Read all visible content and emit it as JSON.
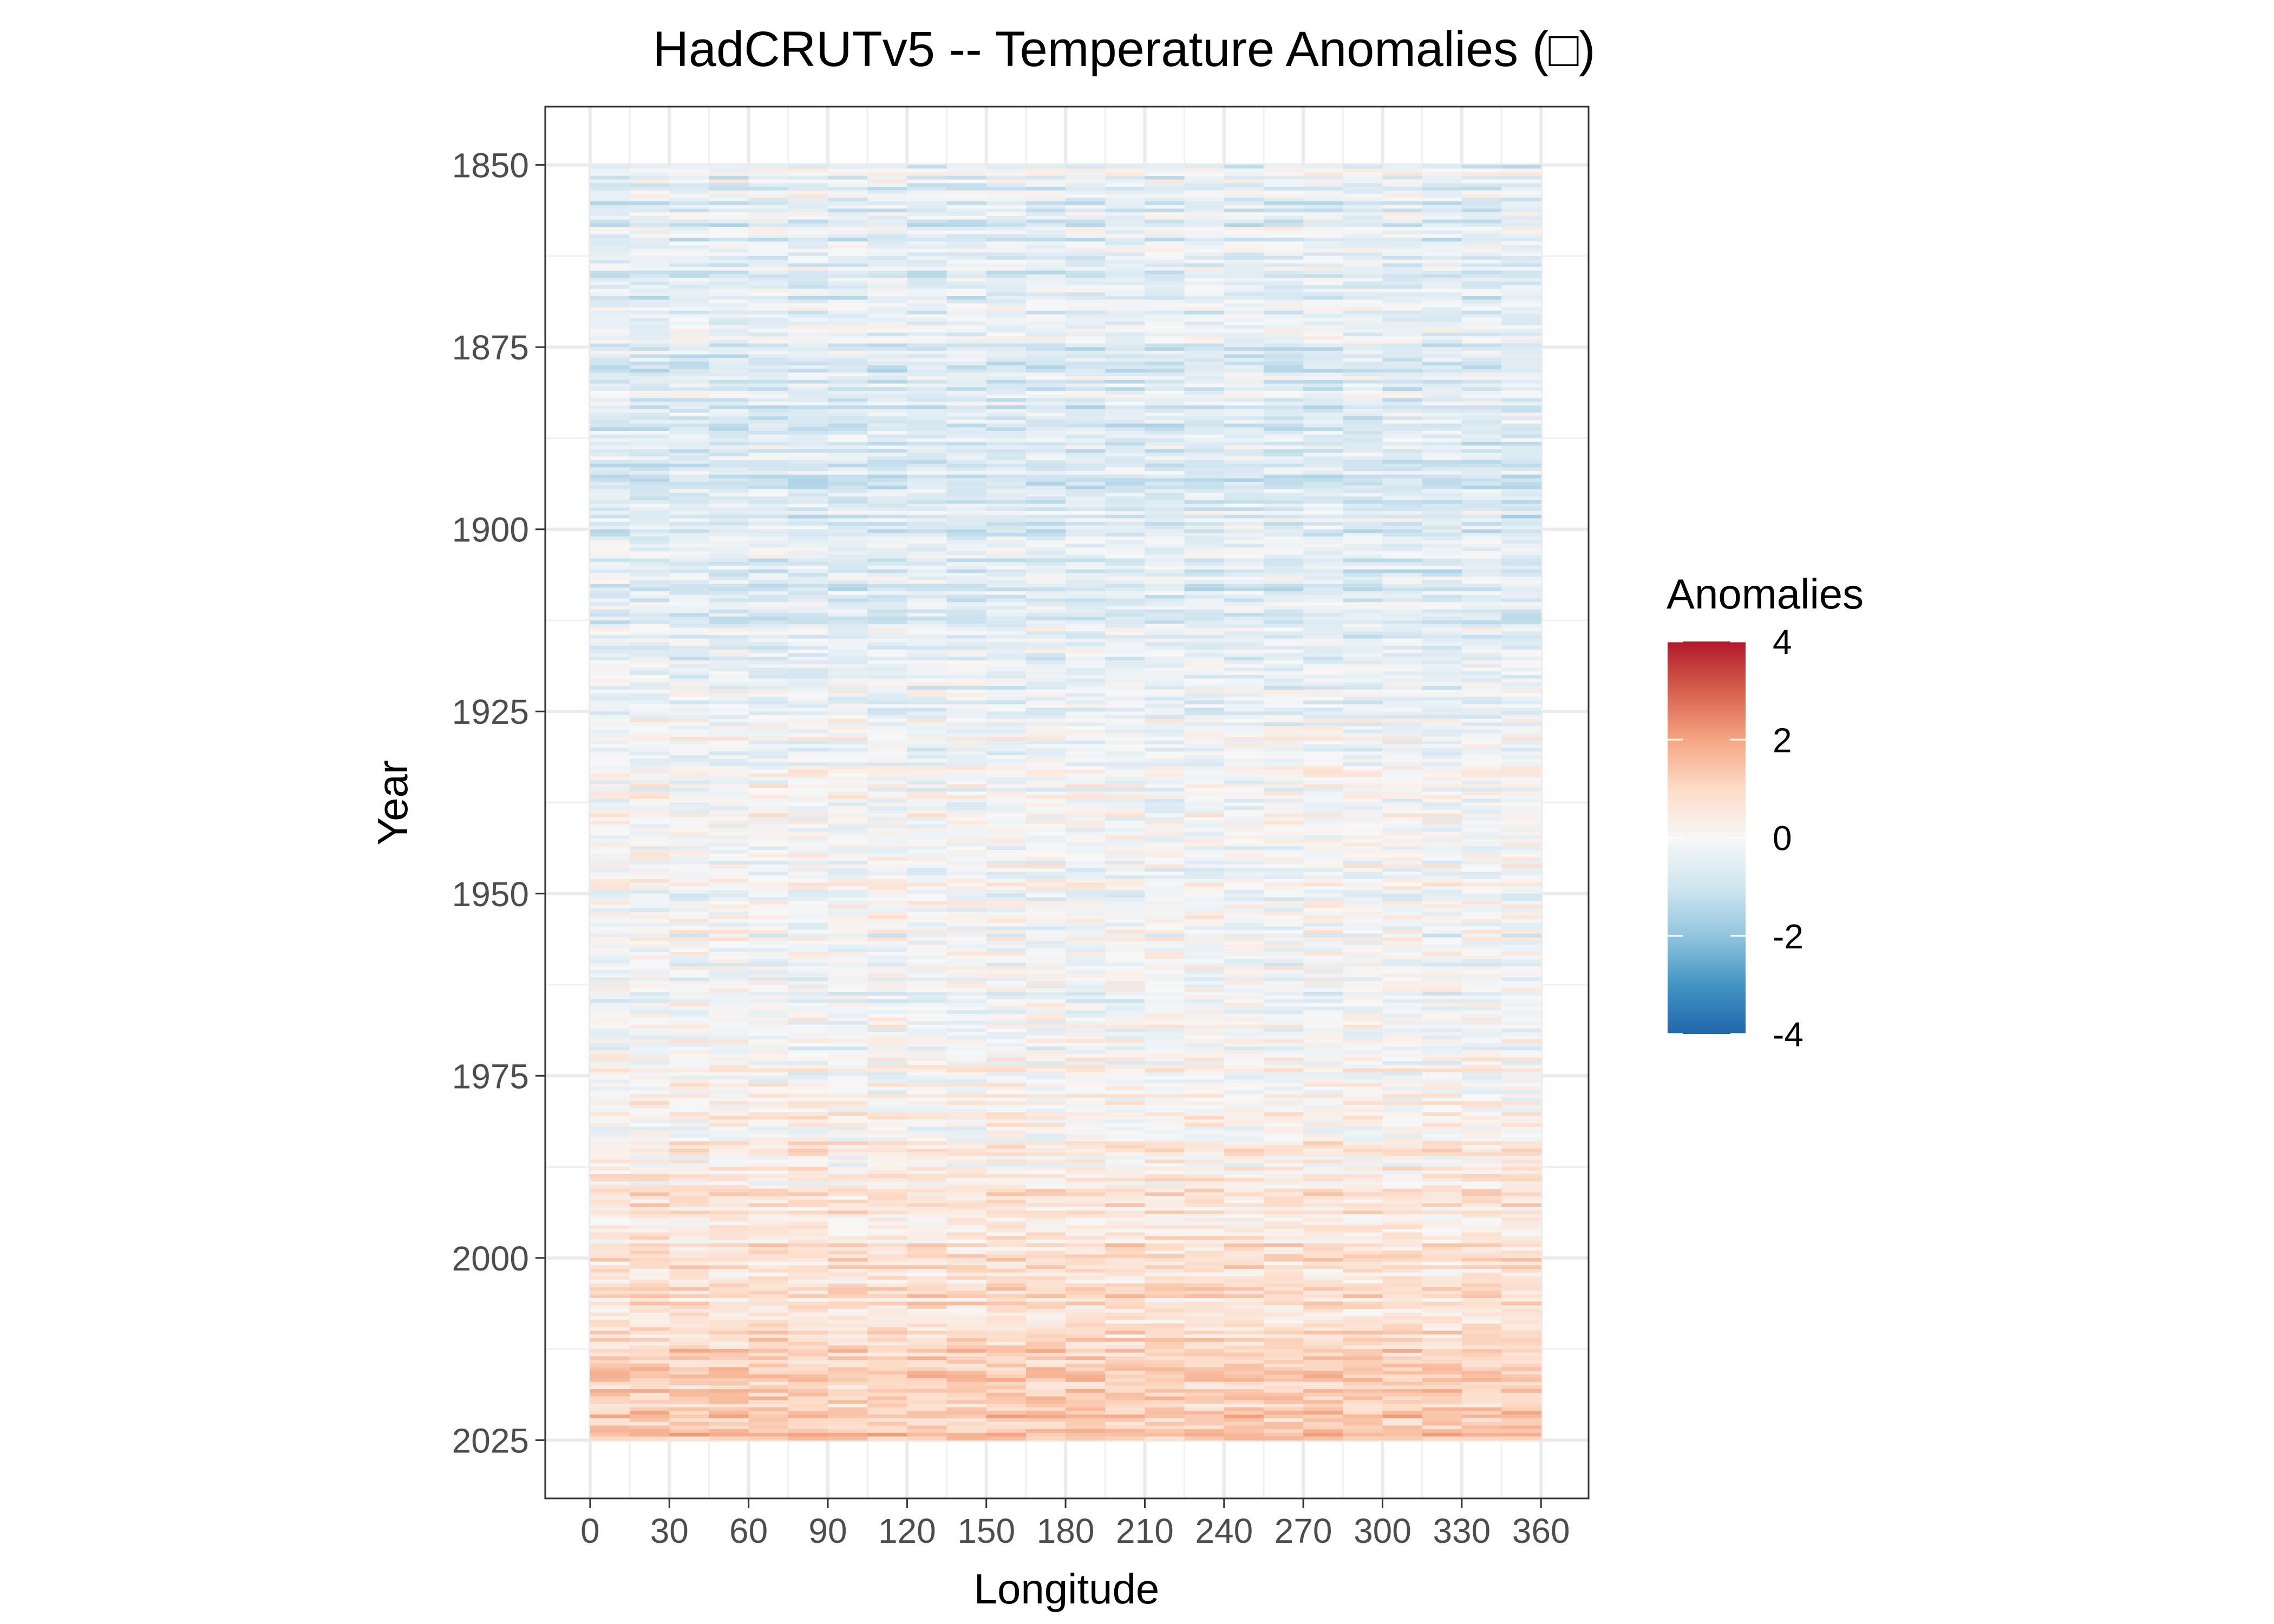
{
  "chart_data": {
    "type": "heatmap",
    "title": "HadCRUTv5 -- Temperature Anomalies (□)",
    "xlabel": "Longitude",
    "ylabel": "Year",
    "x_ticks": [
      0,
      30,
      60,
      90,
      120,
      150,
      180,
      210,
      240,
      270,
      300,
      330,
      360
    ],
    "y_ticks": [
      1850,
      1875,
      1900,
      1925,
      1950,
      1975,
      2000,
      2025
    ],
    "xlim": [
      -17,
      378
    ],
    "ylim": [
      1842,
      2033
    ],
    "data_extent": {
      "x": [
        0,
        360
      ],
      "y": [
        1850,
        2024
      ]
    },
    "y_reversed": true,
    "grid": true,
    "legend": {
      "title": "Anomalies",
      "placement": "right",
      "range": [
        -4,
        4
      ],
      "ticks": [
        4,
        2,
        0,
        -2,
        -4
      ],
      "colors": [
        "#2166ac",
        "#4393c3",
        "#92c5de",
        "#d1e5f0",
        "#f7f7f7",
        "#fddbc7",
        "#f4a582",
        "#d6604d",
        "#b2182b"
      ]
    },
    "decade_mean_anomaly": [
      {
        "year": 1850,
        "value": -0.35
      },
      {
        "year": 1860,
        "value": -0.55
      },
      {
        "year": 1870,
        "value": -0.5
      },
      {
        "year": 1880,
        "value": -0.6
      },
      {
        "year": 1890,
        "value": -0.7
      },
      {
        "year": 1900,
        "value": -0.65
      },
      {
        "year": 1910,
        "value": -0.6
      },
      {
        "year": 1920,
        "value": -0.35
      },
      {
        "year": 1930,
        "value": -0.05
      },
      {
        "year": 1940,
        "value": 0.1
      },
      {
        "year": 1950,
        "value": -0.1
      },
      {
        "year": 1960,
        "value": -0.15
      },
      {
        "year": 1970,
        "value": -0.05
      },
      {
        "year": 1980,
        "value": 0.2
      },
      {
        "year": 1990,
        "value": 0.45
      },
      {
        "year": 2000,
        "value": 0.7
      },
      {
        "year": 2010,
        "value": 1.0
      },
      {
        "year": 2020,
        "value": 1.3
      }
    ]
  }
}
